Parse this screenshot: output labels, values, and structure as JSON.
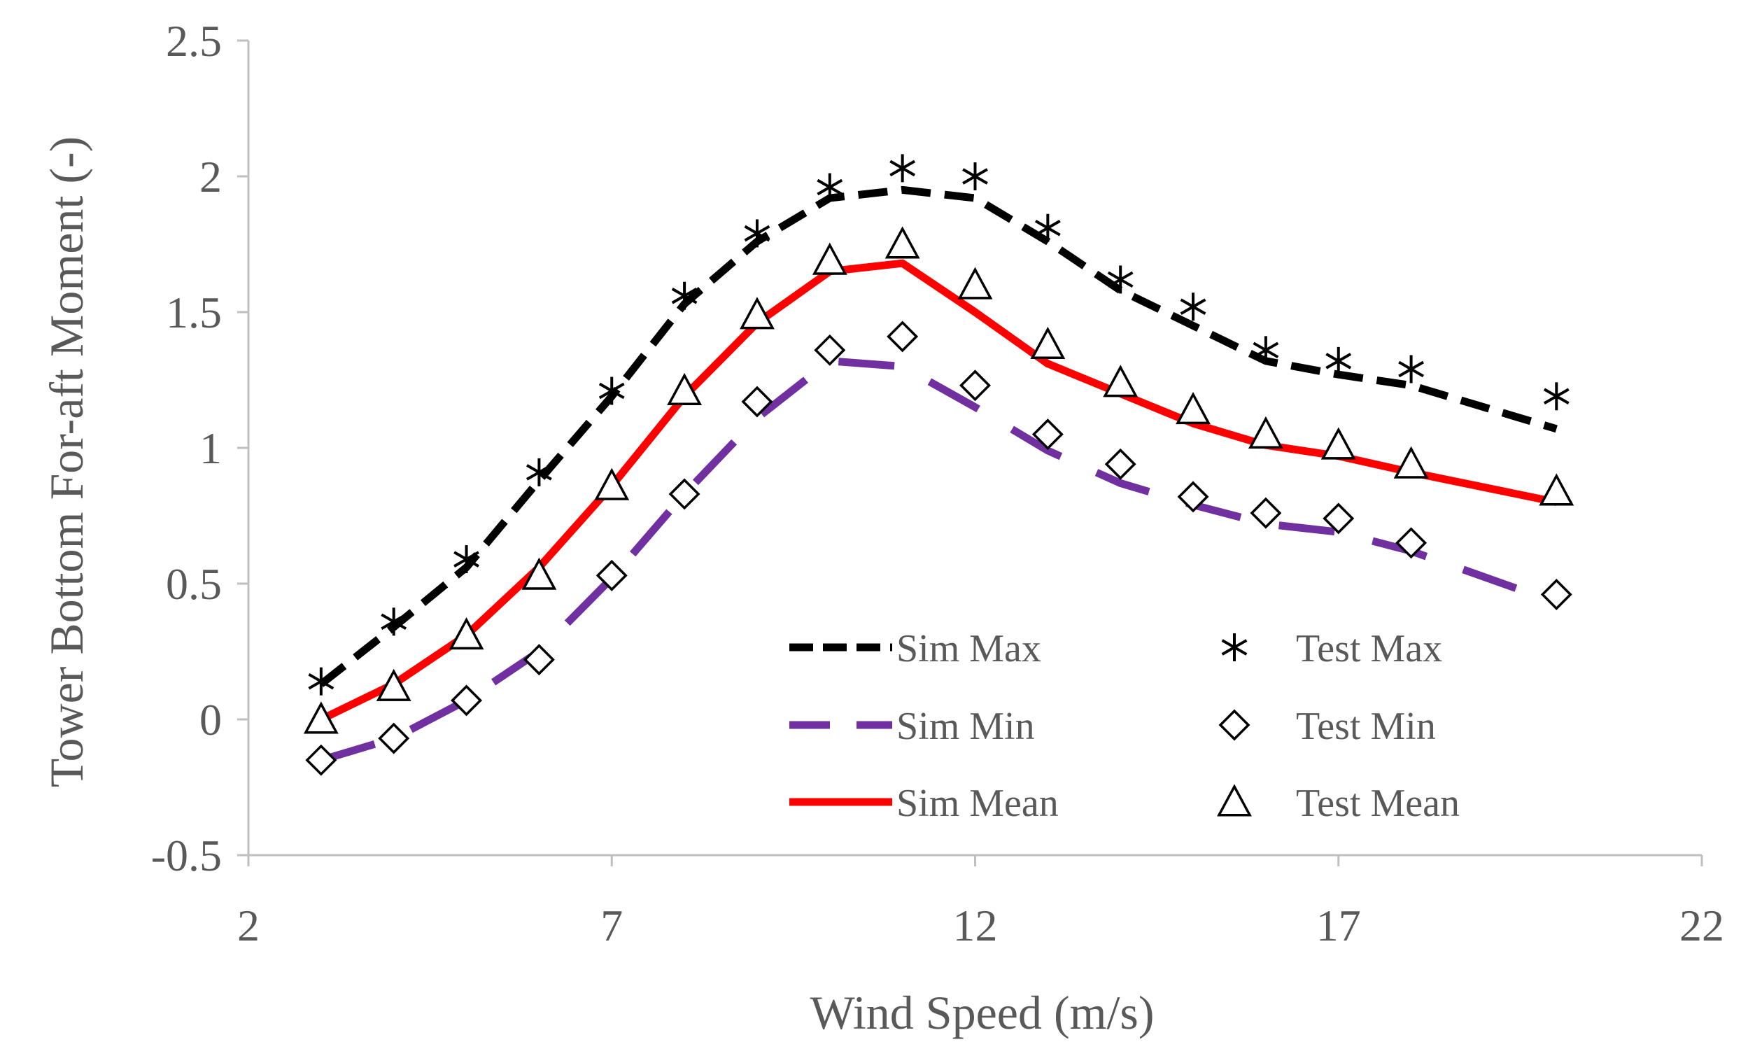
{
  "chart_data": {
    "type": "line",
    "xlabel": "Wind Speed (m/s)",
    "ylabel": "Tower Bottom For-aft Moment (-)",
    "xlim": [
      2,
      22
    ],
    "ylim": [
      -0.5,
      2.5
    ],
    "xticks": [
      2,
      7,
      12,
      17,
      22
    ],
    "yticks": [
      -0.5,
      0,
      0.5,
      1,
      1.5,
      2,
      2.5
    ],
    "xtick_labels": [
      "2",
      "7",
      "12",
      "17",
      "22"
    ],
    "ytick_labels": [
      "-0.5",
      "0",
      "0.5",
      "1",
      "1.5",
      "2",
      "2.5"
    ],
    "grid": false,
    "legend_position": "bottom-center",
    "x": [
      3,
      4,
      5,
      6,
      7,
      8,
      9,
      10,
      11,
      12,
      13,
      14,
      15,
      16,
      17,
      18,
      20
    ],
    "series": [
      {
        "name": "Sim Max",
        "kind": "line",
        "style": "dashed",
        "color": "#000000",
        "values": [
          0.13,
          0.34,
          0.56,
          0.88,
          1.19,
          1.53,
          1.76,
          1.92,
          1.95,
          1.92,
          1.76,
          1.58,
          1.45,
          1.32,
          1.27,
          1.23,
          1.07
        ]
      },
      {
        "name": "Sim Min",
        "kind": "line",
        "style": "long-dashed",
        "color": "#7030a0",
        "values": [
          -0.15,
          -0.07,
          0.07,
          0.25,
          0.52,
          0.83,
          1.11,
          1.32,
          1.3,
          1.15,
          0.99,
          0.87,
          0.79,
          0.72,
          0.69,
          0.62,
          0.43
        ]
      },
      {
        "name": "Sim Mean",
        "kind": "line",
        "style": "solid",
        "color": "#ff0000",
        "values": [
          0.0,
          0.13,
          0.31,
          0.56,
          0.86,
          1.19,
          1.46,
          1.65,
          1.68,
          1.5,
          1.31,
          1.2,
          1.09,
          1.01,
          0.97,
          0.91,
          0.8
        ]
      },
      {
        "name": "Test Max",
        "kind": "marker",
        "marker": "asterisk",
        "color": "#000000",
        "values": [
          0.14,
          0.36,
          0.59,
          0.91,
          1.21,
          1.56,
          1.79,
          1.96,
          2.03,
          2.0,
          1.81,
          1.62,
          1.52,
          1.36,
          1.32,
          1.29,
          1.19
        ]
      },
      {
        "name": "Test Min",
        "kind": "marker",
        "marker": "diamond",
        "color": "#000000",
        "values": [
          -0.15,
          -0.07,
          0.07,
          0.22,
          0.53,
          0.83,
          1.17,
          1.36,
          1.41,
          1.23,
          1.05,
          0.94,
          0.82,
          0.76,
          0.74,
          0.65,
          0.46
        ]
      },
      {
        "name": "Test Mean",
        "kind": "marker",
        "marker": "triangle",
        "color": "#000000",
        "values": [
          0.0,
          0.12,
          0.31,
          0.53,
          0.86,
          1.21,
          1.49,
          1.69,
          1.75,
          1.6,
          1.38,
          1.24,
          1.14,
          1.05,
          1.01,
          0.94,
          0.84
        ]
      }
    ]
  }
}
